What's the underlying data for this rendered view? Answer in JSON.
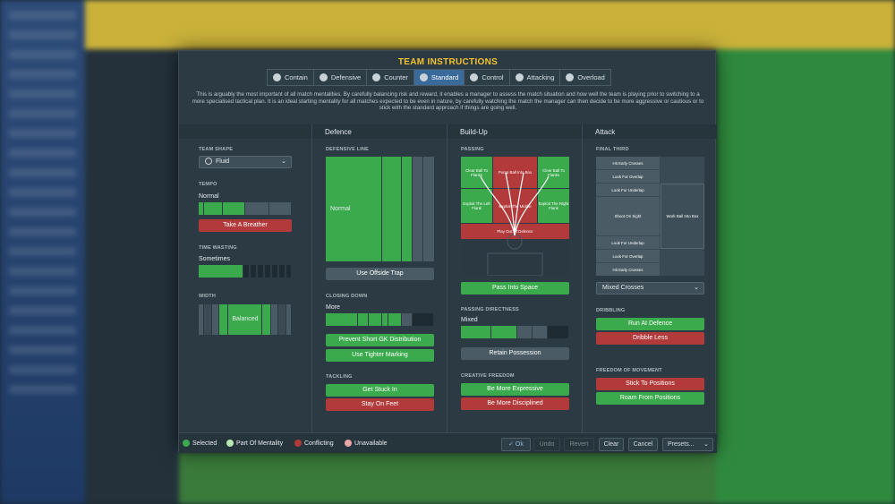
{
  "dialog": {
    "title": "TEAM INSTRUCTIONS",
    "mentality_tabs": [
      {
        "label": "Contain",
        "icon": "shield-heart-icon"
      },
      {
        "label": "Defensive",
        "icon": "shield-icon"
      },
      {
        "label": "Counter",
        "icon": "counter-icon"
      },
      {
        "label": "Standard",
        "icon": "ball-icon",
        "active": true
      },
      {
        "label": "Control",
        "icon": "control-icon"
      },
      {
        "label": "Attacking",
        "icon": "attacking-icon"
      },
      {
        "label": "Overload",
        "icon": "overload-icon"
      }
    ],
    "description": "This is arguably the most important of all match mentalities. By carefully balancing risk and reward, it enables a manager to assess the match situation and how well the team is playing prior to switching to a more specialised tactical plan. It is an ideal starting mentality for all matches expected to be even in nature, by carefully watching the match the manager can then decide to be more aggressive or cautious or to stick with the standard approach if things are going well."
  },
  "general": {
    "team_shape_label": "TEAM SHAPE",
    "team_shape_value": "Fluid",
    "tempo_label": "TEMPO",
    "tempo_value": "Normal",
    "tempo_level": 0.5,
    "tempo_button": "Take A Breather",
    "time_wasting_label": "TIME WASTING",
    "time_wasting_value": "Sometimes",
    "time_wasting_level": 0.5,
    "width_label": "WIDTH",
    "width_value": "Balanced"
  },
  "defence": {
    "header": "Defence",
    "defensive_line_label": "DEFENSIVE LINE",
    "defensive_line_value": "Normal",
    "offside_button": "Use Offside Trap",
    "closing_down_label": "CLOSING DOWN",
    "closing_down_value": "More",
    "closing_down_level": 0.6,
    "btn_prevent_gk": "Prevent Short GK Distribution",
    "btn_tighter_marking": "Use Tighter Marking",
    "tackling_label": "TACKLING",
    "btn_get_stuck_in": "Get Stuck In",
    "btn_stay_on_feet": "Stay On Feet"
  },
  "buildup": {
    "header": "Build-Up",
    "passing_label": "PASSING",
    "zones": {
      "clear_left": "Clear Ball To Flanks",
      "pump_ball": "Pump Ball Into Box",
      "clear_right": "Clear Ball To Flanks",
      "exploit_left": "Exploit The Left Flank",
      "exploit_middle": "Exploit The Middle",
      "exploit_right": "Exploit The Right Flank",
      "play_out": "Play Out Of Defence"
    },
    "pass_into_space": "Pass Into Space",
    "directness_label": "PASSING DIRECTNESS",
    "directness_value": "Mixed",
    "directness_level": 0.5,
    "retain_possession": "Retain Possession",
    "creative_label": "CREATIVE FREEDOM",
    "btn_more_expressive": "Be More Expressive",
    "btn_more_disciplined": "Be More Disciplined"
  },
  "attack": {
    "header": "Attack",
    "final_third_label": "FINAL THIRD",
    "zones": {
      "hit_early_top": "Hit Early Crosses",
      "overlap_top": "Look For Overlap",
      "underlap_top": "Look For Underlap",
      "shoot_on_sight": "Shoot On Sight",
      "work_ball": "Work Ball Into Box",
      "underlap_bottom": "Look For Underlap",
      "overlap_bottom": "Look For Overlap",
      "hit_early_bottom": "Hit Early Crosses"
    },
    "crosses_value": "Mixed Crosses",
    "dribbling_label": "DRIBBLING",
    "btn_run_at_defence": "Run At Defence",
    "btn_dribble_less": "Dribble Less",
    "freedom_label": "FREEDOM OF MOVEMENT",
    "btn_stick_to_positions": "Stick To Positions",
    "btn_roam": "Roam From Positions"
  },
  "footer": {
    "legend": [
      {
        "label": "Selected",
        "color": "#3aaa4c"
      },
      {
        "label": "Part Of Mentality",
        "color": "#b9e8b0"
      },
      {
        "label": "Conflicting",
        "color": "#b33a3a"
      },
      {
        "label": "Unavailable",
        "color": "#e8a6a6"
      }
    ],
    "ok": "Ok",
    "undo": "Undo",
    "revert": "Revert",
    "clear": "Clear",
    "cancel": "Cancel",
    "presets": "Presets..."
  },
  "colors": {
    "accent_title": "#f2c230",
    "selected": "#3aaa4c",
    "conflicting": "#b33a3a",
    "active_tab": "#3a6a9a"
  }
}
